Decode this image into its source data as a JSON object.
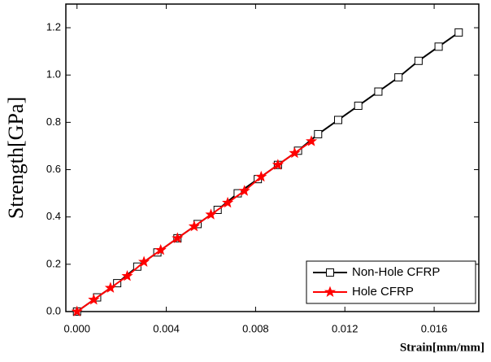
{
  "chart_data": {
    "type": "line",
    "x_label": "Strain[mm/mm]",
    "y_label": "Strength[GPa]",
    "xlim": [
      -0.0005,
      0.018
    ],
    "ylim": [
      0,
      1.3
    ],
    "xticks": [
      {
        "value": 0,
        "label": "0.000"
      },
      {
        "value": 0.004,
        "label": "0.004"
      },
      {
        "value": 0.008,
        "label": "0.008"
      },
      {
        "value": 0.012,
        "label": "0.012"
      },
      {
        "value": 0.016,
        "label": "0.016"
      }
    ],
    "yticks": [
      {
        "value": 0,
        "label": "0.0"
      },
      {
        "value": 0.2,
        "label": "0.2"
      },
      {
        "value": 0.4,
        "label": "0.4"
      },
      {
        "value": 0.6,
        "label": "0.6"
      },
      {
        "value": 0.8,
        "label": "0.8"
      },
      {
        "value": 1.0,
        "label": "1.0"
      },
      {
        "value": 1.2,
        "label": "1.2"
      }
    ],
    "legend": "lower right",
    "series": [
      {
        "name": "Non-Hole CFRP",
        "color": "#000000",
        "marker": "square",
        "x": [
          0,
          0.0009,
          0.0018,
          0.0027,
          0.0036,
          0.0045,
          0.0054,
          0.0063,
          0.0072,
          0.0081,
          0.009,
          0.0099,
          0.0108,
          0.0117,
          0.0126,
          0.0135,
          0.0144,
          0.0153,
          0.0162,
          0.0171
        ],
        "values": [
          0,
          0.06,
          0.12,
          0.19,
          0.25,
          0.31,
          0.37,
          0.43,
          0.5,
          0.56,
          0.62,
          0.68,
          0.75,
          0.81,
          0.87,
          0.93,
          0.99,
          1.06,
          1.12,
          1.18
        ]
      },
      {
        "name": "Hole CFRP",
        "color": "#ff0000",
        "marker": "star",
        "x": [
          0,
          0.00075,
          0.0015,
          0.00225,
          0.003,
          0.00375,
          0.0045,
          0.00525,
          0.006,
          0.00675,
          0.0075,
          0.00825,
          0.009,
          0.00975,
          0.0105
        ],
        "values": [
          0,
          0.05,
          0.1,
          0.15,
          0.21,
          0.26,
          0.31,
          0.36,
          0.41,
          0.46,
          0.51,
          0.57,
          0.62,
          0.67,
          0.72
        ]
      }
    ]
  }
}
